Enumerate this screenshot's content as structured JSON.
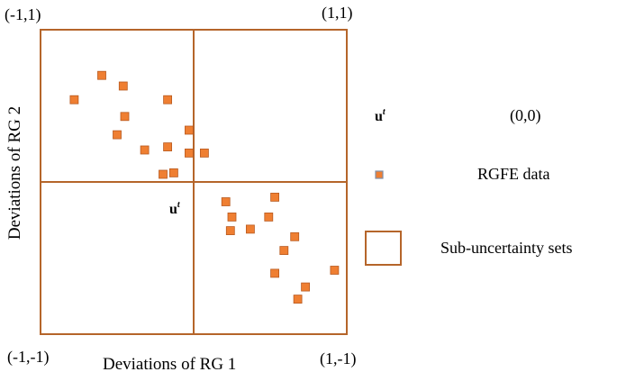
{
  "chart_data": {
    "type": "scatter",
    "xlabel": "Deviations of RG 1",
    "ylabel": "Deviations of RG 2",
    "xlim": [
      -1,
      1
    ],
    "ylim": [
      -1,
      1
    ],
    "corner_labels": {
      "top_left": "(-1,1)",
      "top_right": "(1,1)",
      "bottom_left": "(-1,-1)",
      "bottom_right": "(1,-1)"
    },
    "center_marker": "u",
    "center_marker_sup": "t",
    "points": [
      {
        "x": -0.6,
        "y": 0.7
      },
      {
        "x": -0.46,
        "y": 0.63
      },
      {
        "x": -0.78,
        "y": 0.54
      },
      {
        "x": -0.17,
        "y": 0.54
      },
      {
        "x": -0.45,
        "y": 0.43
      },
      {
        "x": -0.03,
        "y": 0.34
      },
      {
        "x": -0.5,
        "y": 0.31
      },
      {
        "x": -0.17,
        "y": 0.23
      },
      {
        "x": -0.32,
        "y": 0.21
      },
      {
        "x": -0.03,
        "y": 0.19
      },
      {
        "x": 0.07,
        "y": 0.19
      },
      {
        "x": -0.13,
        "y": 0.06
      },
      {
        "x": -0.2,
        "y": 0.05
      },
      {
        "x": 0.21,
        "y": -0.13
      },
      {
        "x": 0.53,
        "y": -0.1
      },
      {
        "x": 0.25,
        "y": -0.23
      },
      {
        "x": 0.49,
        "y": -0.23
      },
      {
        "x": 0.24,
        "y": -0.32
      },
      {
        "x": 0.37,
        "y": -0.31
      },
      {
        "x": 0.66,
        "y": -0.36
      },
      {
        "x": 0.59,
        "y": -0.45
      },
      {
        "x": 0.53,
        "y": -0.6
      },
      {
        "x": 0.92,
        "y": -0.58
      },
      {
        "x": 0.73,
        "y": -0.69
      },
      {
        "x": 0.68,
        "y": -0.77
      }
    ],
    "legend": {
      "placement": "right",
      "items": [
        {
          "symbol": "u",
          "symbol_sup": "t",
          "label": "(0,0)"
        },
        {
          "symbol": "square-marker",
          "label": "RGFE data"
        },
        {
          "symbol": "box",
          "label": "Sub-uncertainty sets"
        }
      ]
    }
  },
  "colors": {
    "frame": "#b5652a",
    "marker_fill": "#ef7f32",
    "marker_edge": "#b85a20",
    "legend_marker_edge": "#7f8fa8"
  }
}
